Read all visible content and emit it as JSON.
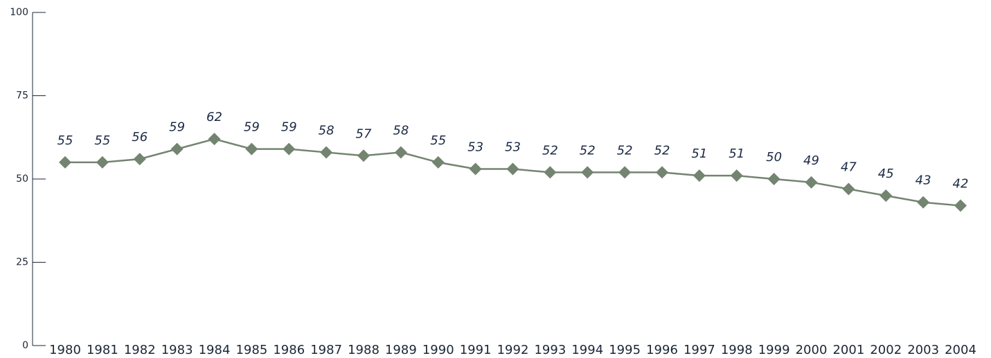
{
  "chart_data": {
    "type": "line",
    "categories": [
      "1980",
      "1981",
      "1982",
      "1983",
      "1984",
      "1985",
      "1986",
      "1987",
      "1988",
      "1989",
      "1990",
      "1991",
      "1992",
      "1993",
      "1994",
      "1995",
      "1996",
      "1997",
      "1998",
      "1999",
      "2000",
      "2001",
      "2002",
      "2003",
      "2004"
    ],
    "series": [
      {
        "color": "#738470",
        "values": [
          55,
          55,
          56,
          59,
          62,
          59,
          59,
          58,
          57,
          58,
          55,
          53,
          53,
          52,
          52,
          52,
          52,
          51,
          51,
          50,
          49,
          47,
          45,
          43,
          42
        ]
      }
    ],
    "ylim": [
      0,
      100
    ],
    "yticks": [
      0,
      25,
      50,
      75,
      100
    ]
  }
}
